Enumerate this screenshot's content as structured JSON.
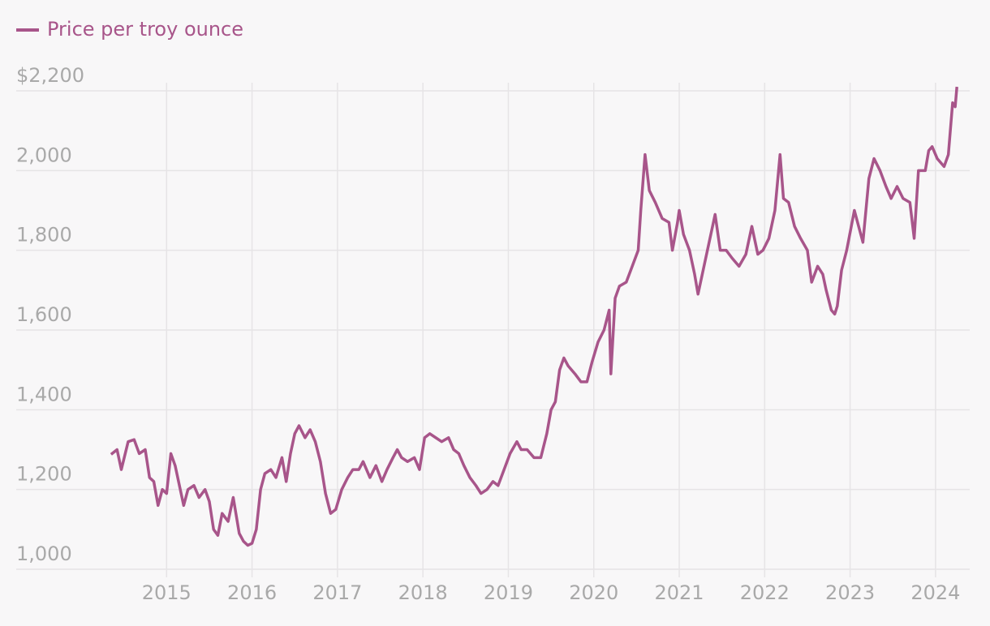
{
  "chart_data": {
    "type": "line",
    "series": [
      {
        "name": "Price per troy ounce",
        "color": "#a8558a",
        "x": [
          2014.35,
          2014.42,
          2014.47,
          2014.55,
          2014.62,
          2014.68,
          2014.75,
          2014.8,
          2014.85,
          2014.9,
          2014.95,
          2015.0,
          2015.05,
          2015.1,
          2015.15,
          2015.2,
          2015.25,
          2015.32,
          2015.38,
          2015.45,
          2015.5,
          2015.55,
          2015.6,
          2015.65,
          2015.72,
          2015.78,
          2015.85,
          2015.9,
          2015.95,
          2016.0,
          2016.05,
          2016.1,
          2016.15,
          2016.22,
          2016.28,
          2016.35,
          2016.4,
          2016.45,
          2016.5,
          2016.55,
          2016.62,
          2016.68,
          2016.74,
          2016.8,
          2016.86,
          2016.92,
          2016.98,
          2017.05,
          2017.12,
          2017.18,
          2017.25,
          2017.3,
          2017.38,
          2017.45,
          2017.52,
          2017.58,
          2017.65,
          2017.7,
          2017.75,
          2017.82,
          2017.9,
          2017.96,
          2018.02,
          2018.08,
          2018.15,
          2018.22,
          2018.3,
          2018.36,
          2018.42,
          2018.48,
          2018.55,
          2018.62,
          2018.68,
          2018.75,
          2018.82,
          2018.88,
          2018.95,
          2019.02,
          2019.1,
          2019.15,
          2019.22,
          2019.3,
          2019.38,
          2019.45,
          2019.5,
          2019.55,
          2019.6,
          2019.65,
          2019.7,
          2019.78,
          2019.85,
          2019.92,
          2019.98,
          2020.05,
          2020.12,
          2020.18,
          2020.2,
          2020.25,
          2020.3,
          2020.38,
          2020.45,
          2020.52,
          2020.55,
          2020.6,
          2020.65,
          2020.72,
          2020.8,
          2020.88,
          2020.92,
          2020.98,
          2021.0,
          2021.05,
          2021.12,
          2021.18,
          2021.22,
          2021.3,
          2021.38,
          2021.42,
          2021.48,
          2021.55,
          2021.62,
          2021.7,
          2021.78,
          2021.85,
          2021.92,
          2021.98,
          2022.05,
          2022.12,
          2022.18,
          2022.22,
          2022.28,
          2022.35,
          2022.42,
          2022.5,
          2022.55,
          2022.62,
          2022.68,
          2022.72,
          2022.78,
          2022.82,
          2022.85,
          2022.9,
          2022.96,
          2023.05,
          2023.1,
          2023.15,
          2023.22,
          2023.28,
          2023.35,
          2023.42,
          2023.48,
          2023.55,
          2023.62,
          2023.7,
          2023.75,
          2023.8,
          2023.88,
          2023.92,
          2023.96,
          2024.02,
          2024.1,
          2024.15,
          2024.2,
          2024.23,
          2024.25
        ],
        "values": [
          1288,
          1300,
          1250,
          1320,
          1325,
          1290,
          1300,
          1230,
          1220,
          1160,
          1200,
          1190,
          1290,
          1260,
          1210,
          1160,
          1200,
          1210,
          1180,
          1200,
          1170,
          1100,
          1085,
          1140,
          1120,
          1180,
          1090,
          1070,
          1060,
          1065,
          1100,
          1200,
          1240,
          1250,
          1230,
          1280,
          1220,
          1290,
          1340,
          1360,
          1330,
          1350,
          1320,
          1270,
          1190,
          1140,
          1150,
          1200,
          1230,
          1250,
          1250,
          1270,
          1230,
          1260,
          1220,
          1250,
          1280,
          1300,
          1280,
          1270,
          1280,
          1250,
          1330,
          1340,
          1330,
          1320,
          1330,
          1300,
          1290,
          1260,
          1230,
          1210,
          1190,
          1200,
          1220,
          1210,
          1250,
          1290,
          1320,
          1300,
          1300,
          1280,
          1280,
          1340,
          1400,
          1420,
          1500,
          1530,
          1510,
          1490,
          1470,
          1470,
          1520,
          1570,
          1600,
          1650,
          1490,
          1680,
          1710,
          1720,
          1760,
          1800,
          1900,
          2040,
          1950,
          1920,
          1880,
          1870,
          1800,
          1870,
          1900,
          1840,
          1800,
          1740,
          1690,
          1770,
          1850,
          1890,
          1800,
          1800,
          1780,
          1760,
          1790,
          1860,
          1790,
          1800,
          1830,
          1900,
          2040,
          1930,
          1920,
          1860,
          1830,
          1800,
          1720,
          1760,
          1740,
          1700,
          1650,
          1640,
          1660,
          1750,
          1800,
          1900,
          1860,
          1820,
          1980,
          2030,
          2000,
          1960,
          1930,
          1960,
          1930,
          1920,
          1830,
          2000,
          2000,
          2050,
          2060,
          2030,
          2010,
          2040,
          2170,
          2160,
          2210
        ]
      }
    ],
    "xlim": [
      2013.24,
      2024.4
    ],
    "xticks": [
      2015,
      2016,
      2017,
      2018,
      2019,
      2020,
      2021,
      2022,
      2023,
      2024
    ],
    "ylim": [
      1000,
      2200
    ],
    "yticks": [
      {
        "value": 1000,
        "label": "1,000"
      },
      {
        "value": 1200,
        "label": "1,200"
      },
      {
        "value": 1400,
        "label": "1,400"
      },
      {
        "value": 1600,
        "label": "1,600"
      },
      {
        "value": 1800,
        "label": "1,800"
      },
      {
        "value": 2000,
        "label": "2,000"
      },
      {
        "value": 2200,
        "label": "$2,200"
      }
    ],
    "grid": true,
    "legend": "top-left"
  }
}
